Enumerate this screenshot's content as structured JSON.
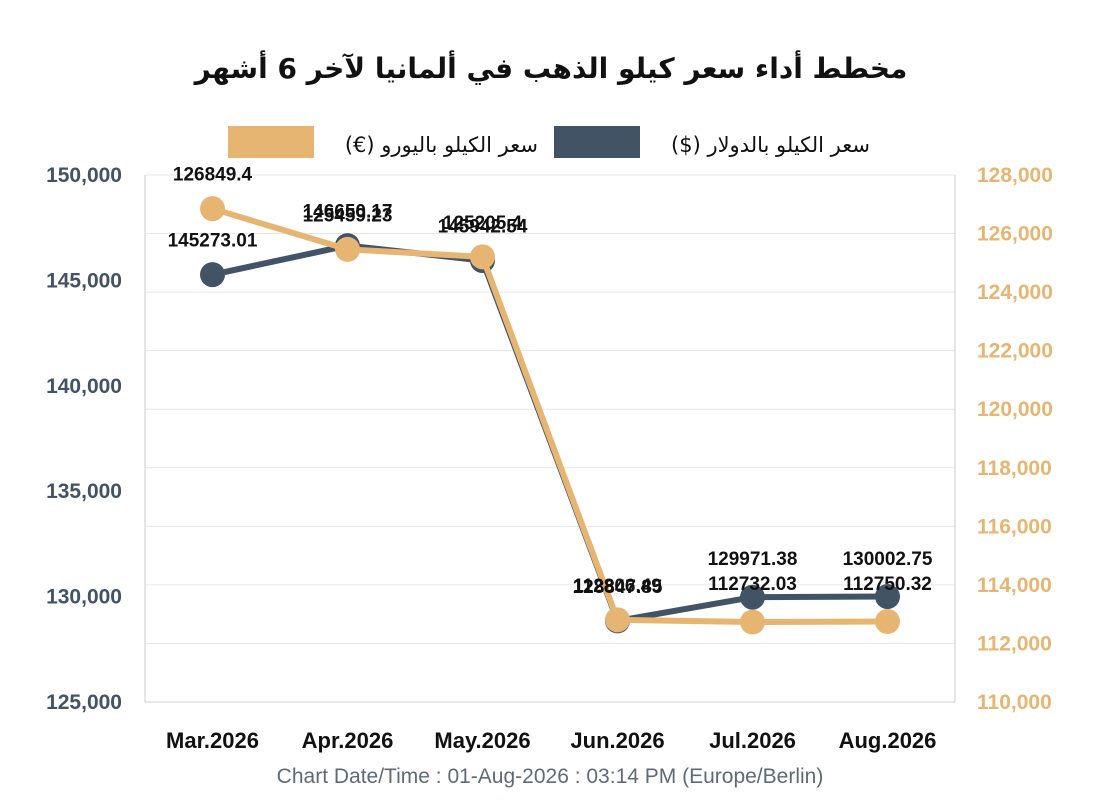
{
  "chart_data": {
    "type": "line",
    "title": "مخطط أداء سعر كيلو الذهب في ألمانيا لآخر 6 أشهر",
    "categories": [
      "Mar.2026",
      "Apr.2026",
      "May.2026",
      "Jun.2026",
      "Jul.2026",
      "Aug.2026"
    ],
    "series": [
      {
        "name": "سعر الكيلو بالدولار ($)",
        "axis": "left",
        "color": "#435366",
        "values": [
          145273.01,
          146650.17,
          145942.54,
          128847.85,
          129971.38,
          130002.75
        ],
        "labels": [
          "145273.01",
          "146650.17",
          "145942.54",
          "128847.85",
          "129971.38",
          "130002.75"
        ]
      },
      {
        "name": "سعر الكيلو باليورو (€)",
        "axis": "right",
        "color": "#e7b572",
        "values": [
          126849.4,
          125459.23,
          125205.4,
          112806.49,
          112732.03,
          112750.32
        ],
        "labels": [
          "126849.4",
          "125459.23",
          "125205.4",
          "112806.49",
          "112732.03",
          "112750.32"
        ]
      }
    ],
    "y_left": {
      "ylim": [
        125000,
        150000
      ],
      "ticks": [
        125000,
        130000,
        135000,
        140000,
        145000,
        150000
      ],
      "tick_labels": [
        "125,000",
        "130,000",
        "135,000",
        "140,000",
        "145,000",
        "150,000"
      ]
    },
    "y_right": {
      "ylim": [
        110000,
        128000
      ],
      "ticks": [
        110000,
        112000,
        114000,
        116000,
        118000,
        120000,
        122000,
        124000,
        126000,
        128000
      ],
      "tick_labels": [
        "110,000",
        "112,000",
        "114,000",
        "116,000",
        "118,000",
        "120,000",
        "122,000",
        "124,000",
        "126,000",
        "128,000"
      ]
    },
    "grid": true,
    "legend_position": "top-center",
    "footer": "Chart Date/Time : 01-Aug-2026 : 03:14 PM (Europe/Berlin)"
  }
}
